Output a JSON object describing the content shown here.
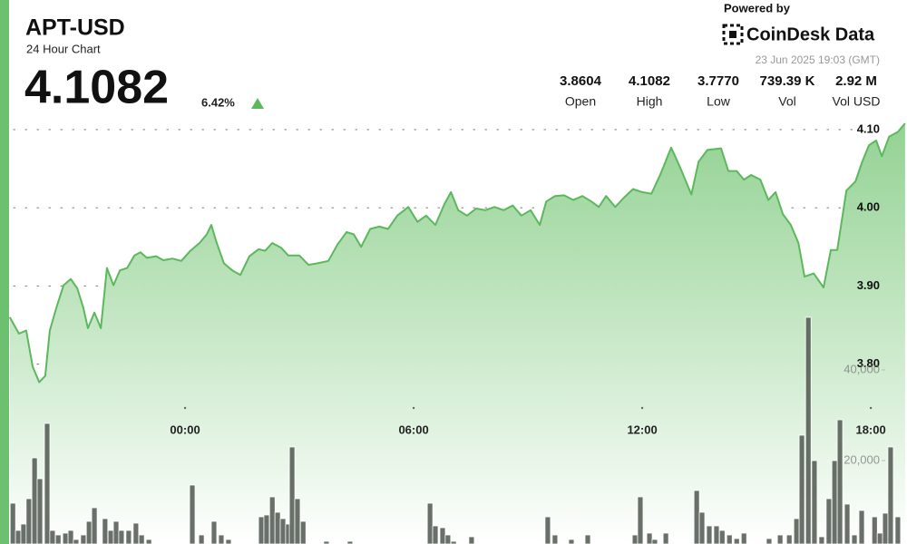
{
  "header": {
    "symbol": "APT-USD",
    "subtitle": "24 Hour Chart",
    "price": "4.1082",
    "change": "6.42%"
  },
  "branding": {
    "powered_by": "Powered by",
    "brand": "CoinDesk Data",
    "timestamp": "23 Jun 2025 19:03 (GMT)"
  },
  "stats": [
    {
      "value": "3.8604",
      "label": "Open"
    },
    {
      "value": "4.1082",
      "label": "High"
    },
    {
      "value": "3.7770",
      "label": "Low"
    },
    {
      "value": "739.39 K",
      "label": "Vol"
    },
    {
      "value": "2.92 M",
      "label": "Vol USD"
    }
  ],
  "chart_data": {
    "type": "line",
    "grid": true,
    "xlim": [
      -4.62,
      18.95
    ],
    "xticks": [
      {
        "value": 0,
        "label": "00:00"
      },
      {
        "value": 6,
        "label": "06:00"
      },
      {
        "value": 12,
        "label": "12:00"
      },
      {
        "value": 18,
        "label": "18:00"
      }
    ],
    "ylim": [
      3.57,
      4.115
    ],
    "yticks": [
      {
        "value": 3.8,
        "label": "3.80"
      },
      {
        "value": 3.9,
        "label": "3.90"
      },
      {
        "value": 4.0,
        "label": "4.00"
      },
      {
        "value": 4.1,
        "label": "4.10"
      }
    ],
    "y2lim": [
      1600,
      95600
    ],
    "y2ticks": [
      {
        "value": 20000,
        "label": "20,000"
      },
      {
        "value": 40000,
        "label": "40,000"
      }
    ],
    "series": [
      {
        "type": "area",
        "color": "#5cb85c",
        "x": [
          -4.6,
          -4.36,
          -4.17,
          -4.0,
          -3.83,
          -3.67,
          -3.55,
          -3.38,
          -3.19,
          -3.0,
          -2.83,
          -2.67,
          -2.55,
          -2.38,
          -2.21,
          -2.05,
          -1.88,
          -1.71,
          -1.52,
          -1.33,
          -1.17,
          -1.0,
          -0.76,
          -0.57,
          -0.33,
          -0.1,
          0.14,
          0.38,
          0.57,
          0.69,
          0.81,
          1.02,
          1.24,
          1.45,
          1.69,
          1.93,
          2.1,
          2.29,
          2.52,
          2.71,
          3.0,
          3.24,
          3.48,
          3.76,
          4.0,
          4.24,
          4.43,
          4.62,
          4.86,
          5.1,
          5.33,
          5.57,
          5.86,
          6.1,
          6.33,
          6.57,
          6.81,
          6.98,
          7.17,
          7.4,
          7.64,
          7.88,
          8.12,
          8.36,
          8.6,
          8.83,
          9.07,
          9.31,
          9.48,
          9.71,
          9.95,
          10.19,
          10.43,
          10.67,
          10.86,
          11.05,
          11.29,
          11.52,
          11.76,
          12.0,
          12.24,
          12.48,
          12.76,
          13.0,
          13.29,
          13.48,
          13.71,
          14.07,
          14.26,
          14.48,
          14.67,
          14.86,
          15.1,
          15.31,
          15.5,
          15.69,
          15.9,
          16.1,
          16.26,
          16.5,
          16.76,
          16.95,
          17.12,
          17.36,
          17.6,
          17.76,
          17.95,
          18.14,
          18.29,
          18.48,
          18.71,
          18.9
        ],
        "values": [
          3.86,
          3.839,
          3.843,
          3.797,
          3.777,
          3.785,
          3.843,
          3.872,
          3.901,
          3.909,
          3.897,
          3.872,
          3.846,
          3.866,
          3.846,
          3.923,
          3.901,
          3.92,
          3.923,
          3.939,
          3.943,
          3.936,
          3.938,
          3.933,
          3.935,
          3.932,
          3.945,
          3.955,
          3.966,
          3.978,
          3.958,
          3.929,
          3.92,
          3.914,
          3.938,
          3.947,
          3.945,
          3.955,
          3.949,
          3.939,
          3.939,
          3.927,
          3.929,
          3.932,
          3.953,
          3.969,
          3.966,
          3.95,
          3.973,
          3.976,
          3.973,
          3.99,
          4.001,
          3.982,
          3.99,
          3.978,
          4.005,
          4.02,
          3.997,
          3.99,
          3.999,
          3.997,
          4.001,
          3.997,
          4.003,
          3.99,
          3.997,
          3.978,
          4.008,
          4.015,
          4.016,
          4.01,
          4.015,
          4.008,
          4.001,
          4.015,
          4.001,
          4.013,
          4.024,
          4.02,
          4.018,
          4.043,
          4.077,
          4.051,
          4.017,
          4.059,
          4.074,
          4.076,
          4.047,
          4.047,
          4.036,
          4.042,
          4.036,
          4.01,
          4.02,
          3.992,
          3.978,
          3.955,
          3.912,
          3.916,
          3.898,
          3.946,
          3.946,
          4.022,
          4.034,
          4.057,
          4.08,
          4.086,
          4.066,
          4.091,
          4.097,
          4.108
        ]
      },
      {
        "type": "bar",
        "axis": "y2",
        "color": "#4f574f",
        "x": [
          -4.52,
          -4.38,
          -4.24,
          -4.1,
          -3.95,
          -3.81,
          -3.62,
          -3.48,
          -3.33,
          -3.14,
          -3.0,
          -2.86,
          -2.67,
          -2.52,
          -2.38,
          -2.1,
          -1.95,
          -1.81,
          -1.67,
          -1.48,
          -1.29,
          -1.14,
          -0.95,
          0.19,
          0.43,
          0.76,
          0.95,
          1.14,
          2.0,
          2.14,
          2.29,
          2.43,
          2.57,
          2.71,
          2.81,
          2.95,
          3.1,
          3.71,
          4.33,
          6.43,
          6.57,
          6.76,
          6.9,
          7.05,
          7.52,
          9.52,
          9.71,
          10.14,
          10.57,
          11.81,
          11.95,
          12.19,
          12.33,
          12.62,
          13.43,
          13.57,
          13.76,
          13.95,
          14.1,
          14.29,
          14.48,
          14.67,
          15.33,
          15.62,
          15.86,
          16.05,
          16.19,
          16.36,
          16.52,
          16.71,
          16.9,
          17.05,
          17.19,
          17.38,
          17.57,
          17.76,
          18.1,
          18.24,
          18.38,
          18.52,
          18.71
        ],
        "values": [
          10600,
          4600,
          6000,
          11600,
          20600,
          16000,
          28200,
          4600,
          3600,
          4000,
          4600,
          2600,
          3600,
          6600,
          9600,
          7200,
          4600,
          6600,
          4600,
          4600,
          6200,
          3600,
          2600,
          14600,
          3600,
          6600,
          3600,
          2600,
          7600,
          8000,
          12000,
          8600,
          7200,
          6000,
          23000,
          11600,
          6600,
          2200,
          2200,
          10600,
          5600,
          5200,
          3600,
          2200,
          3200,
          7600,
          3600,
          2600,
          3600,
          3600,
          12000,
          4000,
          2600,
          4000,
          13400,
          8600,
          5600,
          5600,
          4600,
          3600,
          2800,
          4000,
          2800,
          3600,
          3600,
          7200,
          25600,
          51600,
          20000,
          3200,
          11600,
          20000,
          29000,
          10400,
          3600,
          9000,
          7600,
          4000,
          8400,
          23000,
          7600
        ]
      }
    ]
  }
}
